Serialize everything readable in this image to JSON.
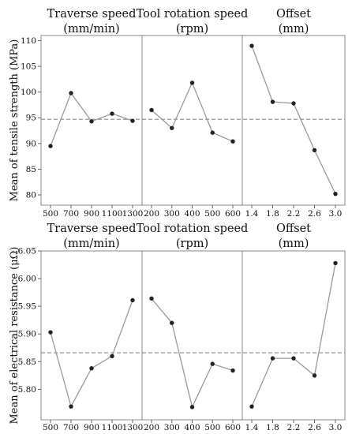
{
  "chart_data": [
    {
      "type": "line",
      "ylabel": "Mean of tensile strength (MPa)",
      "ylim": [
        78,
        111
      ],
      "yticks": [
        "80",
        "85",
        "90",
        "95",
        "100",
        "105",
        "110"
      ],
      "reference_line": 94.7,
      "panels": [
        {
          "title_lines": [
            "Traverse speed",
            "(mm/min)"
          ],
          "categories": [
            "500",
            "700",
            "900",
            "1100",
            "1300"
          ],
          "values": [
            89.5,
            99.8,
            94.3,
            95.8,
            94.4
          ]
        },
        {
          "title_lines": [
            "Tool rotation speed",
            "(rpm)"
          ],
          "categories": [
            "200",
            "300",
            "400",
            "500",
            "600"
          ],
          "values": [
            96.5,
            93.0,
            101.8,
            92.1,
            90.4
          ]
        },
        {
          "title_lines": [
            "Offset",
            "(mm)"
          ],
          "categories": [
            "1.4",
            "1.8",
            "2.2",
            "2.6",
            "3.0"
          ],
          "values": [
            109.0,
            98.1,
            97.8,
            88.7,
            80.2
          ]
        }
      ]
    },
    {
      "type": "line",
      "ylabel": "Mean of electrical resistance (μΩ)",
      "ylim": [
        5.745,
        6.05
      ],
      "yticks": [
        "5.80",
        "5.85",
        "5.90",
        "5.95",
        "6.00",
        "6.05"
      ],
      "reference_line": 5.866,
      "panels": [
        {
          "title_lines": [
            "Traverse speed",
            "(mm/min)"
          ],
          "categories": [
            "500",
            "700",
            "900",
            "1100",
            "1300"
          ],
          "values": [
            5.903,
            5.769,
            5.838,
            5.86,
            5.961
          ]
        },
        {
          "title_lines": [
            "Tool rotation speed",
            "(rpm)"
          ],
          "categories": [
            "200",
            "300",
            "400",
            "500",
            "600"
          ],
          "values": [
            5.964,
            5.92,
            5.768,
            5.846,
            5.834
          ]
        },
        {
          "title_lines": [
            "Offset",
            "(mm)"
          ],
          "categories": [
            "1.4",
            "1.8",
            "2.2",
            "2.6",
            "3.0"
          ],
          "values": [
            5.769,
            5.856,
            5.856,
            5.825,
            6.028
          ]
        }
      ]
    }
  ]
}
